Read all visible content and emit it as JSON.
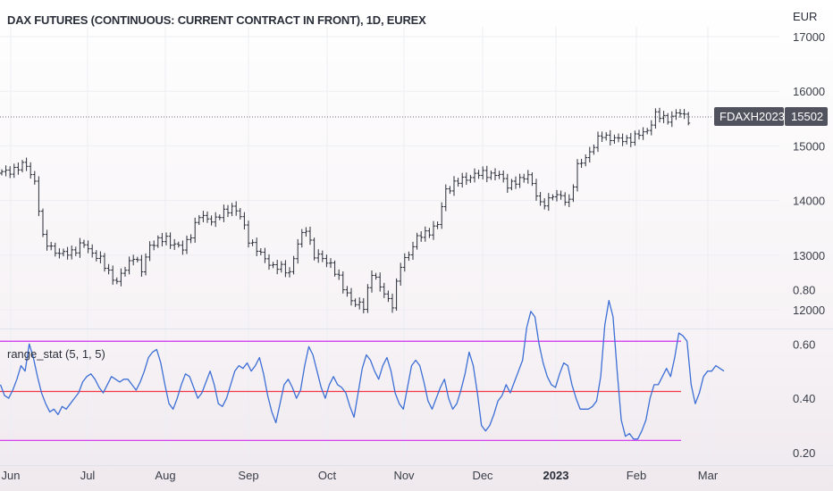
{
  "header": {
    "title": "DAX FUTURES (CONTINUOUS: CURRENT CONTRACT IN FRONT), 1D, EUREX",
    "currency": "EUR"
  },
  "indicator": {
    "title": "range_stat (5, 1, 5)"
  },
  "price_tag": {
    "symbol": "FDAXH2023",
    "value": "15502"
  },
  "colors": {
    "bars": "#2a2e39",
    "indicator_line": "#3d6fd6",
    "mid_line": "#f23645",
    "band_line": "#d12bf0",
    "tag_bg": "#50535e",
    "grid": "#eceef2"
  },
  "chart_data": [
    {
      "type": "ohlc",
      "title": "DAX FUTURES (CONTINUOUS: CURRENT CONTRACT IN FRONT), 1D, EUREX",
      "ylabel": "EUR",
      "ylim": [
        11750,
        17100
      ],
      "y_ticks": [
        12000,
        13000,
        14000,
        15000,
        16000,
        17000
      ],
      "last_value": 15502,
      "last_symbol": "FDAXH2023",
      "x_tick_labels": [
        "Jun",
        "Jul",
        "Aug",
        "Sep",
        "Oct",
        "Nov",
        "Dec",
        "2023",
        "Feb",
        "Mar"
      ],
      "anchors": [
        [
          0,
          14500
        ],
        [
          6,
          14650
        ],
        [
          8,
          14350
        ],
        [
          10,
          13300
        ],
        [
          14,
          13000
        ],
        [
          18,
          13100
        ],
        [
          20,
          13200
        ],
        [
          24,
          12900
        ],
        [
          28,
          12500
        ],
        [
          32,
          13000
        ],
        [
          34,
          12700
        ],
        [
          36,
          13200
        ],
        [
          40,
          13300
        ],
        [
          44,
          13100
        ],
        [
          48,
          13700
        ],
        [
          52,
          13650
        ],
        [
          56,
          13900
        ],
        [
          58,
          13700
        ],
        [
          60,
          13300
        ],
        [
          63,
          13000
        ],
        [
          66,
          12800
        ],
        [
          70,
          12700
        ],
        [
          72,
          13200
        ],
        [
          74,
          13500
        ],
        [
          76,
          13000
        ],
        [
          80,
          12850
        ],
        [
          83,
          12400
        ],
        [
          86,
          12100
        ],
        [
          88,
          12050
        ],
        [
          90,
          12700
        ],
        [
          92,
          12400
        ],
        [
          95,
          12100
        ],
        [
          97,
          12800
        ],
        [
          101,
          13300
        ],
        [
          104,
          13450
        ],
        [
          106,
          13550
        ],
        [
          108,
          14200
        ],
        [
          110,
          14300
        ],
        [
          114,
          14450
        ],
        [
          118,
          14500
        ],
        [
          121,
          14450
        ],
        [
          123,
          14300
        ],
        [
          126,
          14350
        ],
        [
          128,
          14500
        ],
        [
          131,
          13900
        ],
        [
          134,
          14100
        ],
        [
          138,
          14000
        ],
        [
          140,
          14600
        ],
        [
          143,
          14900
        ],
        [
          146,
          15200
        ],
        [
          150,
          15100
        ],
        [
          154,
          15150
        ],
        [
          157,
          15300
        ],
        [
          159,
          15550
        ],
        [
          162,
          15500
        ],
        [
          165,
          15600
        ],
        [
          167,
          15500
        ]
      ]
    },
    {
      "type": "line",
      "title": "range_stat (5, 1, 5)",
      "ylim": [
        0.2,
        0.8
      ],
      "y_ticks": [
        0.2,
        0.4,
        0.6,
        0.8
      ],
      "reference_lines": [
        {
          "name": "upper",
          "value": 0.61
        },
        {
          "name": "middle",
          "value": 0.425
        },
        {
          "name": "lower",
          "value": 0.245
        }
      ],
      "values": [
        0.45,
        0.41,
        0.4,
        0.43,
        0.47,
        0.52,
        0.5,
        0.6,
        0.55,
        0.48,
        0.42,
        0.38,
        0.35,
        0.36,
        0.34,
        0.37,
        0.36,
        0.38,
        0.4,
        0.42,
        0.46,
        0.48,
        0.49,
        0.47,
        0.44,
        0.42,
        0.45,
        0.48,
        0.47,
        0.46,
        0.47,
        0.47,
        0.45,
        0.43,
        0.46,
        0.5,
        0.55,
        0.57,
        0.58,
        0.53,
        0.45,
        0.38,
        0.36,
        0.4,
        0.45,
        0.49,
        0.48,
        0.44,
        0.4,
        0.42,
        0.46,
        0.5,
        0.45,
        0.38,
        0.37,
        0.4,
        0.45,
        0.5,
        0.52,
        0.51,
        0.53,
        0.5,
        0.52,
        0.55,
        0.49,
        0.41,
        0.35,
        0.31,
        0.38,
        0.45,
        0.47,
        0.44,
        0.4,
        0.43,
        0.52,
        0.59,
        0.56,
        0.5,
        0.44,
        0.4,
        0.45,
        0.48,
        0.45,
        0.44,
        0.42,
        0.37,
        0.33,
        0.42,
        0.51,
        0.56,
        0.54,
        0.5,
        0.47,
        0.52,
        0.55,
        0.5,
        0.42,
        0.38,
        0.36,
        0.44,
        0.52,
        0.54,
        0.52,
        0.46,
        0.39,
        0.36,
        0.4,
        0.44,
        0.47,
        0.4,
        0.36,
        0.38,
        0.43,
        0.49,
        0.57,
        0.52,
        0.42,
        0.3,
        0.28,
        0.3,
        0.34,
        0.39,
        0.41,
        0.45,
        0.42,
        0.46,
        0.5,
        0.54,
        0.66,
        0.72,
        0.7,
        0.6,
        0.53,
        0.48,
        0.45,
        0.44,
        0.49,
        0.53,
        0.52,
        0.45,
        0.4,
        0.36,
        0.36,
        0.36,
        0.37,
        0.39,
        0.48,
        0.67,
        0.76,
        0.7,
        0.5,
        0.32,
        0.26,
        0.27,
        0.25,
        0.25,
        0.28,
        0.32,
        0.4,
        0.45,
        0.45,
        0.48,
        0.51,
        0.48,
        0.55,
        0.64,
        0.63,
        0.61,
        0.45,
        0.38,
        0.42,
        0.48,
        0.5,
        0.5,
        0.52,
        0.51,
        0.5
      ]
    }
  ]
}
